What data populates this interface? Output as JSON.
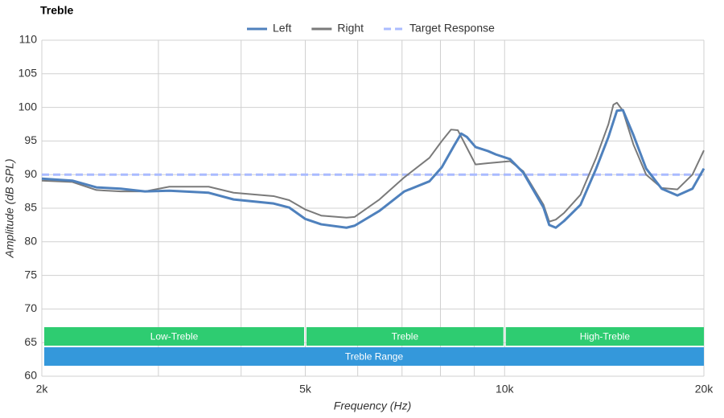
{
  "chart_data": {
    "type": "line",
    "title": "Treble",
    "x_label": "Frequency (Hz)",
    "y_label": "Amplitude (dB SPL)",
    "xscale": "log",
    "xlim": [
      2000,
      20000
    ],
    "ylim": [
      60,
      110
    ],
    "xticks": [
      {
        "value": 2000,
        "label": "2k"
      },
      {
        "value": 5000,
        "label": "5k"
      },
      {
        "value": 10000,
        "label": "10k"
      },
      {
        "value": 20000,
        "label": "20k"
      }
    ],
    "xminor_grid": [
      3000,
      4000,
      6000,
      7000,
      8000,
      9000
    ],
    "yticks": [
      60,
      65,
      70,
      75,
      80,
      85,
      90,
      95,
      100,
      105,
      110
    ],
    "grid": true,
    "legend": "top",
    "series": [
      {
        "name": "Left",
        "color": "#4f81bd",
        "style": "solid",
        "x": [
          2000,
          2224,
          2418,
          2632,
          2862,
          3117,
          3573,
          3897,
          4478,
          4727,
          5000,
          5285,
          5770,
          5937,
          6471,
          7057,
          7700,
          8040,
          8400,
          8600,
          8770,
          9040,
          9440,
          9700,
          10190,
          10670,
          11450,
          11680,
          11950,
          12300,
          13020,
          13750,
          14350,
          14780,
          15090,
          15650,
          16360,
          17270,
          18240,
          19220,
          20000
        ],
        "values": [
          89.4,
          89.1,
          88.1,
          87.9,
          87.5,
          87.6,
          87.3,
          86.3,
          85.7,
          85.1,
          83.4,
          82.6,
          82.1,
          82.4,
          84.6,
          87.5,
          89.0,
          91.1,
          94.4,
          96.1,
          95.6,
          94.1,
          93.5,
          93.0,
          92.3,
          90.3,
          85.1,
          82.5,
          82.1,
          83.1,
          85.5,
          90.9,
          95.6,
          99.5,
          99.6,
          95.9,
          90.9,
          87.9,
          86.9,
          87.9,
          90.9
        ]
      },
      {
        "name": "Right",
        "color": "#7a7a7a",
        "style": "solid",
        "x": [
          2000,
          2224,
          2418,
          2632,
          2862,
          3117,
          3573,
          3897,
          4478,
          4727,
          5000,
          5285,
          5770,
          5937,
          6471,
          7057,
          7700,
          8040,
          8300,
          8500,
          8770,
          9040,
          9440,
          9700,
          10190,
          10670,
          11450,
          11680,
          11950,
          12300,
          13020,
          13750,
          14350,
          14600,
          14780,
          15090,
          15650,
          16360,
          17270,
          18240,
          19220,
          20000
        ],
        "values": [
          89.1,
          88.9,
          87.7,
          87.5,
          87.5,
          88.2,
          88.2,
          87.3,
          86.8,
          86.2,
          84.8,
          83.9,
          83.6,
          83.7,
          86.3,
          89.6,
          92.5,
          95.0,
          96.7,
          96.6,
          94.0,
          91.5,
          91.7,
          91.8,
          92.0,
          90.5,
          85.5,
          83.0,
          83.3,
          84.3,
          87.0,
          92.5,
          97.5,
          100.4,
          100.7,
          99.5,
          94.5,
          90.0,
          88.0,
          87.8,
          90.0,
          93.6
        ]
      },
      {
        "name": "Target Response",
        "color": "#aabbff",
        "style": "dashed",
        "x": [
          2000,
          20000
        ],
        "values": [
          90,
          90
        ]
      }
    ],
    "bands": [
      {
        "label": "Low-Treble",
        "start": 2000,
        "end": 5000,
        "color": "#2ecc71",
        "row": 0
      },
      {
        "label": "Treble",
        "start": 5000,
        "end": 10000,
        "color": "#2ecc71",
        "row": 0
      },
      {
        "label": "High-Treble",
        "start": 10000,
        "end": 20000,
        "color": "#2ecc71",
        "row": 0
      },
      {
        "label": "Treble Range",
        "start": 2000,
        "end": 20000,
        "color": "#3498db",
        "row": 1
      }
    ]
  }
}
